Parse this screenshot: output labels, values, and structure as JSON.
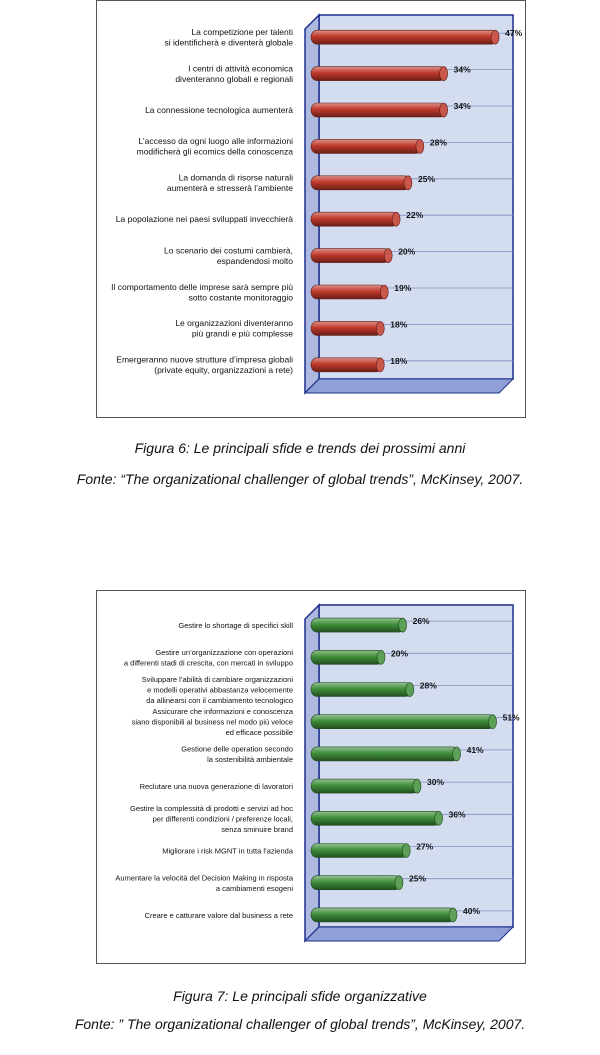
{
  "figures": [
    {
      "caption": "Figura 6: Le principali sfide e trends dei prossimi anni",
      "source": "Fonte: “The organizational challenger of global trends”, McKinsey, 2007.",
      "chart_data": {
        "type": "bar",
        "orientation": "horizontal",
        "title": "",
        "xlabel": "",
        "ylabel": "",
        "xlim": [
          0,
          50
        ],
        "grid": true,
        "legend": "none",
        "bar_color": "#c0392b",
        "categories": [
          [
            "La competizione per talenti",
            "si identificherà e diventerà globale"
          ],
          [
            "I centri di attività economica",
            "diventeranno globali e regionali"
          ],
          [
            "La connessione tecnologica aumenterà"
          ],
          [
            "L’accesso da ogni luogo alle informazioni",
            "modificherà gli ecomics della conoscenza"
          ],
          [
            "La domanda di risorse naturali",
            "aumenterà e stresserà l’ambiente"
          ],
          [
            "La popolazione nei paesi sviluppati invecchierà"
          ],
          [
            "Lo scenario dei costumi cambierà,",
            "espandendosi molto"
          ],
          [
            "Il comportamento delle imprese sarà sempre più",
            "sotto costante monitoraggio"
          ],
          [
            "Le organizzazioni diventeranno",
            "più grandi e più complesse"
          ],
          [
            "Emergeranno nuove strutture d’impresa globali",
            "(private equity, organizzazioni a rete)"
          ]
        ],
        "values": [
          47,
          34,
          34,
          28,
          25,
          22,
          20,
          19,
          18,
          18
        ],
        "value_labels": [
          "47%",
          "34%",
          "34%",
          "28%",
          "25%",
          "22%",
          "20%",
          "19%",
          "18%",
          "18%"
        ]
      }
    },
    {
      "caption": "Figura 7: Le principali sfide organizzative",
      "source": "Fonte: ” The organizational challenger of global trends”, McKinsey, 2007.",
      "chart_data": {
        "type": "bar",
        "orientation": "horizontal",
        "title": "",
        "xlabel": "",
        "ylabel": "",
        "xlim": [
          0,
          55
        ],
        "grid": true,
        "legend": "none",
        "bar_color": "#3f8f3a",
        "categories": [
          [
            "Gestire lo shortage di specifici skill"
          ],
          [
            "Gestire un’organizzazione con operazioni",
            "a differenti stadi di crescita, con mercati in sviluppo"
          ],
          [
            "Sviluppare l’abilità di cambiare organizzazioni",
            "e modelli operativi abbastanza velocemente",
            "da allinearsi con il cambiamento tecnologico"
          ],
          [
            "Assicurare che informazioni e conoscenza",
            "siano disponibili al business nel modo più veloce",
            "ed efficace possibile"
          ],
          [
            "Gestione delle operation secondo",
            "la sostenibilità ambientale"
          ],
          [
            "Reclutare una nuova generazione di lavoratori"
          ],
          [
            "Gestire la complessità di prodotti e servizi ad hoc",
            "per differenti condizioni / preferenze locali,",
            "senza sminuire brand"
          ],
          [
            "Migliorare i risk MGNT in tutta l’azienda"
          ],
          [
            "Aumentare la velocità del Decision Making in risposta",
            "a cambiamenti esogeni"
          ],
          [
            "Creare e catturare valore dal business a rete"
          ]
        ],
        "values": [
          26,
          20,
          28,
          51,
          41,
          30,
          36,
          27,
          25,
          40
        ],
        "value_labels": [
          "26%",
          "20%",
          "28%",
          "51%",
          "41%",
          "30%",
          "36%",
          "27%",
          "25%",
          "40%"
        ]
      }
    }
  ]
}
